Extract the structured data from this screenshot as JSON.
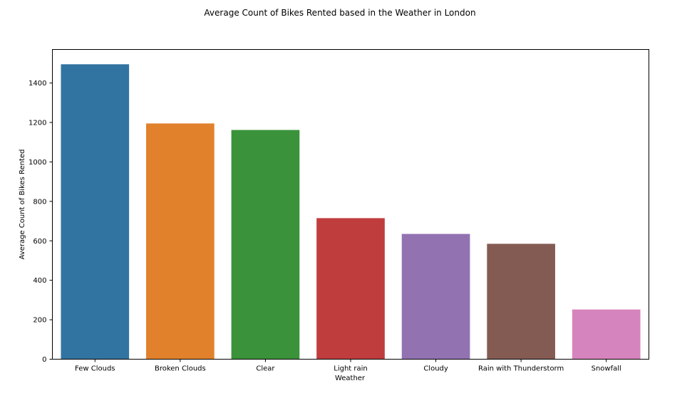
{
  "chart_data": {
    "type": "bar",
    "title": "Average Count of Bikes Rented based in the Weather in London",
    "xlabel": "Weather",
    "ylabel": "Average Count of Bikes Rented",
    "categories": [
      "Few Clouds",
      "Broken Clouds",
      "Clear",
      "Light rain",
      "Cloudy",
      "Rain with Thunderstorm",
      "Snowfall"
    ],
    "values": [
      1495,
      1195,
      1162,
      715,
      635,
      585,
      252
    ],
    "colors": [
      "#3274a1",
      "#e1812c",
      "#3a923a",
      "#c03d3e",
      "#9372b2",
      "#845b53",
      "#d684bd"
    ],
    "yticks": [
      0,
      200,
      400,
      600,
      800,
      1000,
      1200,
      1400
    ],
    "ylim": [
      0,
      1570
    ],
    "grid": false,
    "legend": "none"
  }
}
